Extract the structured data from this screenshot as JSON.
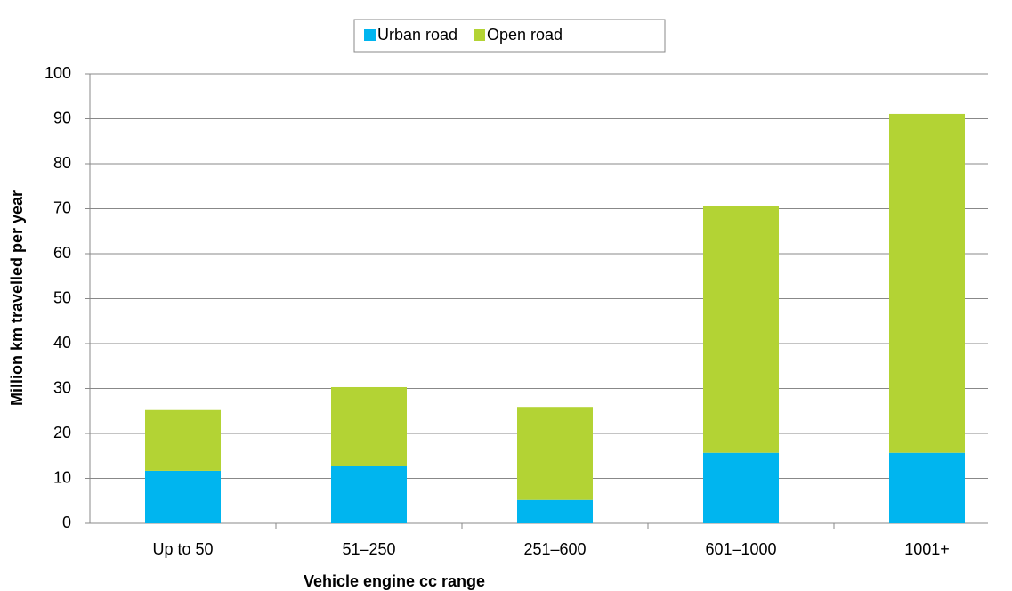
{
  "chart_data": {
    "type": "stacked_bar",
    "x_label": "Vehicle engine cc range",
    "y_label": "Million km travelled per year",
    "categories": [
      "Up to 50",
      "51–250",
      "251–600",
      "601–1000",
      "1001+"
    ],
    "series": [
      {
        "name": "Urban road",
        "color": "#00b5ef",
        "values": [
          11.7,
          12.8,
          5.2,
          15.7,
          15.7
        ]
      },
      {
        "name": "Open road",
        "color": "#b3d334",
        "values": [
          13.5,
          17.5,
          20.7,
          54.8,
          75.4
        ]
      }
    ],
    "ylim": [
      0,
      100
    ],
    "yticks": [
      0,
      10,
      20,
      30,
      40,
      50,
      60,
      70,
      80,
      90,
      100
    ],
    "grid": true,
    "legend": "top"
  }
}
